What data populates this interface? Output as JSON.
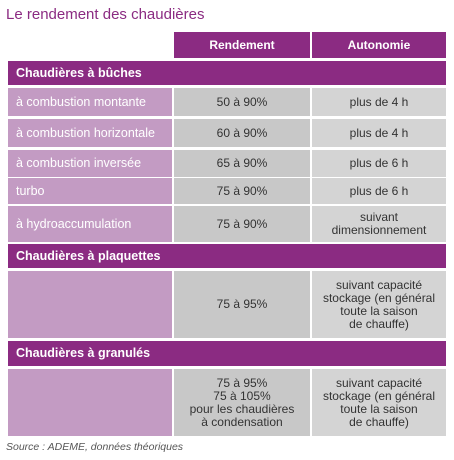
{
  "title": "Le rendement des chaudières",
  "table": {
    "header": [
      "Rendement",
      "Autonomie"
    ],
    "sections": [
      {
        "title": "Chaudières à bûches",
        "rows": [
          {
            "label": "à combustion montante",
            "rendement": [
              "50 à 90%"
            ],
            "autonomie": [
              "plus de 4 h"
            ]
          },
          {
            "label": "à combustion horizontale",
            "rendement": [
              "60 à 90%"
            ],
            "autonomie": [
              "plus de 4 h"
            ]
          },
          {
            "label": "à combustion inversée",
            "rendement": [
              "65 à 90%"
            ],
            "autonomie": [
              "plus de 6 h"
            ]
          },
          {
            "label": "turbo",
            "rendement": [
              "75 à 90%"
            ],
            "autonomie": [
              "plus de 6 h"
            ]
          },
          {
            "label": "à hydroaccumulation",
            "rendement": [
              "75 à 90%"
            ],
            "autonomie": [
              "suivant",
              "dimensionnement"
            ]
          }
        ]
      },
      {
        "title": "Chaudières à plaquettes",
        "rows": [
          {
            "rendement": [
              "75 à 95%"
            ],
            "autonomie": [
              "suivant capacité",
              "stockage (en général",
              "toute la saison",
              "de chauffe)"
            ]
          }
        ]
      },
      {
        "title": "Chaudières à granulés",
        "rows": [
          {
            "rendement": [
              "75 à 95%",
              "75 à 105%",
              "pour les chaudières",
              "à condensation"
            ],
            "autonomie": [
              "suivant capacité",
              "stockage (en général",
              "toute la saison",
              "de chauffe)"
            ]
          }
        ]
      }
    ]
  },
  "source": "Source : ADEME, données théoriques"
}
